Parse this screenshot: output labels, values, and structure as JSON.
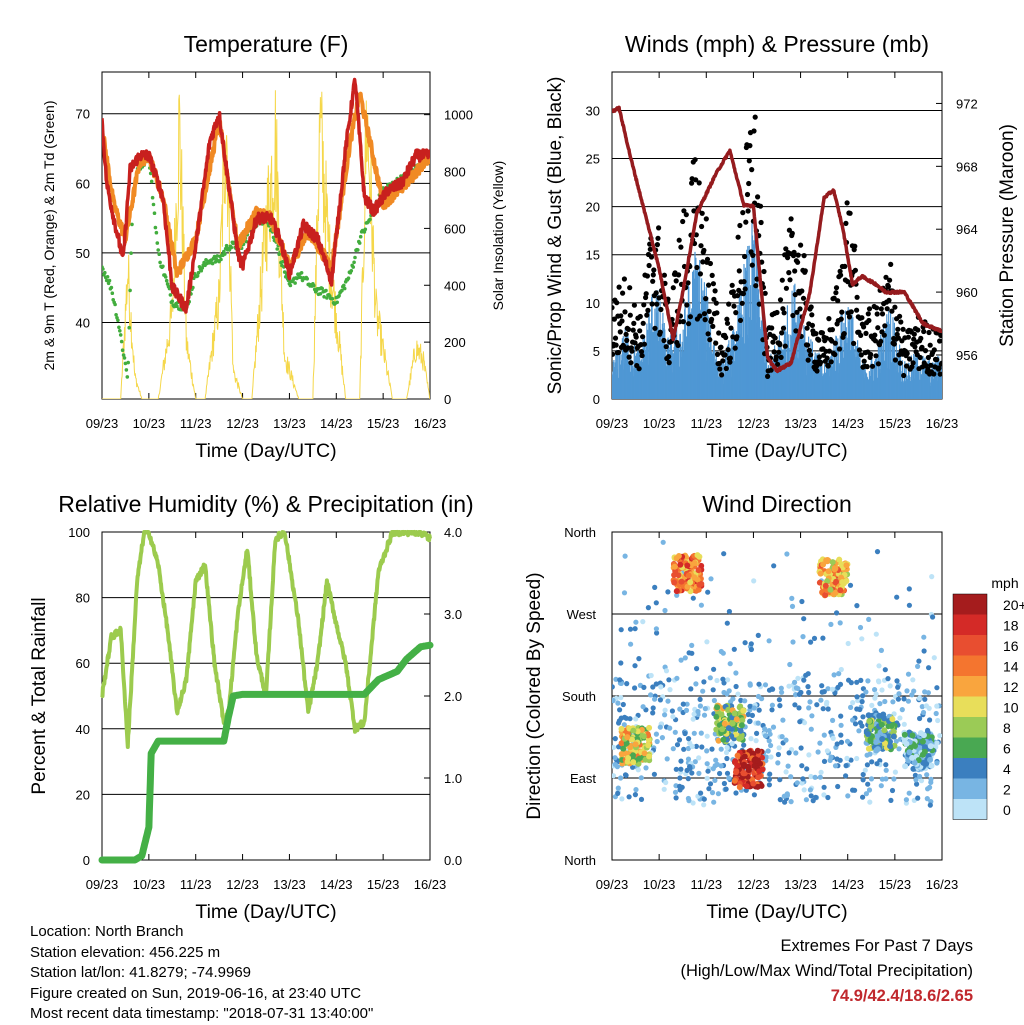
{
  "chart_data": [
    {
      "type": "line",
      "title": "Temperature (F)",
      "xlabel": "Time (Day/UTC)",
      "ylabel": "2m & 9m T (Red, Orange) & 2m Td (Green)",
      "ylabel_right": "Solar Insolation (Yellow)",
      "x_ticks": [
        "09/23",
        "10/23",
        "11/23",
        "12/23",
        "13/23",
        "14/23",
        "15/23",
        "16/23"
      ],
      "ylim": [
        29,
        76
      ],
      "y_ticks": [
        40,
        50,
        60,
        70
      ],
      "y2lim": [
        0,
        1150
      ],
      "y2_ticks": [
        0,
        200,
        400,
        600,
        800,
        1000
      ],
      "grid": true,
      "colors": {
        "t2m": "#c8201e",
        "t9m": "#f08a24",
        "td": "#42ad3d",
        "solar": "#f5d74a"
      },
      "series": [
        {
          "name": "2m T",
          "color": "#c8201e",
          "axis": "left",
          "x": [
            0,
            0.1,
            0.25,
            0.45,
            0.6,
            0.8,
            1.0,
            1.3,
            1.5,
            1.8,
            2.0,
            2.3,
            2.5,
            2.7,
            2.9,
            3.0,
            3.3,
            3.6,
            3.8,
            4.0,
            4.3,
            4.6,
            4.9,
            5.2,
            5.4,
            5.6,
            5.8,
            6.1,
            6.4,
            6.7,
            7.0
          ],
          "y": [
            69,
            60,
            55,
            49,
            62,
            64,
            64,
            58,
            45,
            42,
            51,
            66,
            70,
            60,
            50,
            48,
            55,
            55,
            52,
            47,
            54,
            52,
            46,
            65,
            75,
            58,
            56,
            59,
            60,
            64,
            64
          ]
        },
        {
          "name": "9m T",
          "color": "#f08a24",
          "axis": "left",
          "x": [
            0,
            0.25,
            0.5,
            0.8,
            1.0,
            1.3,
            1.6,
            2.0,
            2.5,
            2.9,
            3.3,
            3.6,
            4.0,
            4.4,
            4.9,
            5.3,
            5.5,
            6.0,
            6.5,
            7.0
          ],
          "y": [
            68,
            57,
            52,
            63,
            64,
            58,
            47,
            52,
            69,
            51,
            56,
            55,
            48,
            53,
            48,
            66,
            73,
            57,
            60,
            64
          ]
        },
        {
          "name": "2m Td",
          "color": "#42ad3d",
          "axis": "left",
          "x": [
            0,
            0.2,
            0.35,
            0.55,
            0.65,
            0.75,
            1.0,
            1.2,
            1.5,
            1.8,
            2.0,
            2.3,
            2.5,
            2.7,
            3.0,
            3.2,
            3.5,
            3.7,
            4.0,
            4.2,
            4.5,
            4.8,
            5.0,
            5.3,
            5.5,
            5.8,
            6.0,
            6.5,
            7.0
          ],
          "y": [
            48,
            45,
            40,
            32,
            57,
            62,
            64,
            50,
            43,
            42,
            47,
            49,
            49,
            51,
            51,
            54,
            55,
            52,
            45,
            47,
            45,
            44,
            43,
            47,
            52,
            56,
            59,
            61,
            64
          ]
        },
        {
          "name": "Solar Insolation",
          "color": "#f5d74a",
          "axis": "right",
          "x": [
            0,
            0.4,
            0.55,
            0.7,
            0.85,
            1.2,
            1.5,
            1.65,
            1.8,
            2.0,
            2.2,
            2.5,
            2.65,
            2.8,
            3.0,
            3.2,
            3.5,
            3.7,
            3.9,
            4.2,
            4.5,
            4.65,
            4.85,
            5.2,
            5.5,
            5.65,
            5.85,
            6.2,
            6.5,
            6.7,
            6.85,
            7.0
          ],
          "y": [
            0,
            0,
            450,
            80,
            0,
            0,
            300,
            950,
            200,
            0,
            0,
            350,
            1000,
            100,
            0,
            0,
            600,
            900,
            150,
            0,
            0,
            950,
            500,
            0,
            0,
            1000,
            300,
            0,
            0,
            180,
            140,
            0
          ]
        }
      ]
    },
    {
      "type": "scatter",
      "title": "Winds (mph) & Pressure (mb)",
      "xlabel": "Time (Day/UTC)",
      "ylabel": "Sonic/Prop Wind & Gust (Blue, Black)",
      "ylabel_right": "Station Pressure (Maroon)",
      "x_ticks": [
        "09/23",
        "10/23",
        "11/23",
        "12/23",
        "13/23",
        "14/23",
        "15/23",
        "16/23"
      ],
      "ylim": [
        0,
        34
      ],
      "y_ticks": [
        0,
        5,
        10,
        15,
        20,
        25,
        30
      ],
      "y2lim": [
        953.2,
        974.0
      ],
      "y2_ticks": [
        956,
        960,
        964,
        968,
        972
      ],
      "grid": true,
      "colors": {
        "wind": "#4f97d4",
        "gust": "#000000",
        "pressure": "#951b1e"
      },
      "series": [
        {
          "name": "Wind",
          "color": "#4f97d4",
          "axis": "left",
          "x": [
            0,
            0.3,
            0.6,
            0.9,
            1.2,
            1.5,
            1.8,
            2.0,
            2.3,
            2.6,
            2.8,
            3.0,
            3.3,
            3.6,
            3.9,
            4.2,
            4.5,
            4.8,
            5.0,
            5.3,
            5.6,
            5.9,
            6.2,
            6.5,
            6.8,
            7.0
          ],
          "y": [
            3,
            6,
            4,
            10,
            5,
            7,
            13,
            9,
            3,
            6,
            11,
            15,
            3,
            6,
            10,
            5,
            3,
            6,
            9,
            3,
            4,
            8,
            3,
            4,
            3,
            4
          ]
        },
        {
          "name": "Gust",
          "color": "#000000",
          "axis": "left",
          "x": [
            0,
            0.3,
            0.6,
            0.9,
            1.2,
            1.5,
            1.8,
            2.0,
            2.3,
            2.6,
            2.8,
            3.0,
            3.3,
            3.6,
            3.9,
            4.2,
            4.5,
            4.8,
            5.0,
            5.3,
            5.6,
            5.9,
            6.2,
            6.5,
            6.8,
            7.0
          ],
          "y": [
            10,
            12,
            8,
            20,
            9,
            18,
            24,
            18,
            6,
            12,
            22,
            31,
            6,
            12,
            20,
            9,
            6,
            12,
            21,
            8,
            9,
            14,
            6,
            8,
            7,
            6
          ]
        },
        {
          "name": "Station Pressure",
          "color": "#951b1e",
          "axis": "right",
          "x": [
            0,
            0.15,
            0.4,
            0.7,
            1.0,
            1.3,
            1.5,
            1.8,
            2.2,
            2.5,
            2.8,
            3.0,
            3.3,
            3.5,
            3.8,
            4.2,
            4.5,
            4.7,
            4.9,
            5.1,
            5.3,
            5.6,
            5.8,
            6.2,
            6.6,
            7.0
          ],
          "y": [
            971.5,
            971.7,
            968.5,
            965.0,
            961.5,
            957.0,
            960.0,
            965.0,
            967.5,
            969.0,
            965.5,
            965.5,
            955.8,
            955.0,
            955.5,
            960.0,
            966.0,
            966.5,
            964.0,
            960.5,
            961.0,
            960.5,
            960.0,
            960.0,
            958.0,
            957.5
          ]
        }
      ]
    },
    {
      "type": "line",
      "title": "Relative Humidity (%) & Precipitation (in)",
      "xlabel": "Time (Day/UTC)",
      "ylabel": "Percent & Total Rainfall",
      "x_ticks": [
        "09/23",
        "10/23",
        "11/23",
        "12/23",
        "13/23",
        "14/23",
        "15/23",
        "16/23"
      ],
      "ylim": [
        0,
        100
      ],
      "y_ticks": [
        0,
        20,
        40,
        60,
        80,
        100
      ],
      "y2lim": [
        0,
        4.0
      ],
      "y2_ticks": [
        "0.0",
        "1.0",
        "2.0",
        "3.0",
        "4.0"
      ],
      "grid": true,
      "colors": {
        "rh": "#9ccb4e",
        "precip": "#44b046"
      },
      "series": [
        {
          "name": "Relative Humidity",
          "color": "#9ccb4e",
          "axis": "left",
          "x": [
            0,
            0.2,
            0.4,
            0.55,
            0.65,
            0.75,
            0.9,
            1.0,
            1.2,
            1.4,
            1.6,
            1.8,
            2.0,
            2.2,
            2.4,
            2.6,
            2.7,
            2.9,
            3.1,
            3.3,
            3.5,
            3.7,
            3.9,
            4.2,
            4.4,
            4.6,
            4.8,
            5.0,
            5.2,
            5.4,
            5.6,
            5.9,
            6.2,
            6.5,
            6.8,
            7.0
          ],
          "y": [
            50,
            68,
            70,
            35,
            60,
            85,
            100,
            100,
            90,
            70,
            45,
            55,
            85,
            90,
            60,
            42,
            45,
            75,
            95,
            62,
            50,
            98,
            100,
            72,
            45,
            60,
            85,
            72,
            60,
            40,
            42,
            88,
            100,
            100,
            100,
            98
          ]
        },
        {
          "name": "Total Rainfall",
          "color": "#44b046",
          "axis": "right",
          "x": [
            0,
            0.7,
            0.85,
            1.0,
            1.05,
            1.2,
            2.0,
            2.6,
            2.7,
            2.8,
            3.0,
            4.0,
            5.0,
            5.6,
            5.9,
            6.3,
            6.5,
            6.8,
            7.0
          ],
          "y": [
            0.0,
            0.0,
            0.05,
            0.4,
            1.3,
            1.45,
            1.45,
            1.45,
            1.75,
            2.0,
            2.02,
            2.02,
            2.02,
            2.02,
            2.2,
            2.3,
            2.45,
            2.6,
            2.62
          ]
        }
      ]
    },
    {
      "type": "scatter",
      "title": "Wind Direction",
      "xlabel": "Time (Day/UTC)",
      "ylabel": "Direction (Colored By Speed)",
      "x_ticks": [
        "09/23",
        "10/23",
        "11/23",
        "12/23",
        "13/23",
        "14/23",
        "15/23",
        "16/23"
      ],
      "y_ticks": [
        "North",
        "East",
        "South",
        "West",
        "North"
      ],
      "ylim": [
        0,
        360
      ],
      "grid": true,
      "colorbar": {
        "units": "mph",
        "labels": [
          "20+",
          "18",
          "16",
          "14",
          "12",
          "10",
          "8",
          "6",
          "4",
          "2",
          "0"
        ],
        "colors": [
          "#a51c1d",
          "#d42a27",
          "#e84e30",
          "#f4752f",
          "#f9a53e",
          "#e8de5a",
          "#9bcb56",
          "#49a852",
          "#3b7fbf",
          "#78b5e3",
          "#bde3f7"
        ]
      },
      "clusters": [
        {
          "x": 0.5,
          "dir": 125,
          "speed": 10
        },
        {
          "x": 1.6,
          "dir": 315,
          "speed": 14
        },
        {
          "x": 2.9,
          "dir": 100,
          "speed": 18
        },
        {
          "x": 2.5,
          "dir": 150,
          "speed": 8
        },
        {
          "x": 4.7,
          "dir": 310,
          "speed": 12
        },
        {
          "x": 5.7,
          "dir": 140,
          "speed": 6
        },
        {
          "x": 6.5,
          "dir": 120,
          "speed": 3
        }
      ]
    }
  ],
  "footer": {
    "location": "Location: North Branch",
    "elevation": "Station elevation: 456.225 m",
    "latlon": "Station lat/lon: 41.8279; -74.9969",
    "created": "Figure created on Sun, 2019-06-16, at 23:40 UTC",
    "recent": "Most recent data timestamp: \"2018-07-31 13:40:00\""
  },
  "extremes": {
    "title": "Extremes For Past 7 Days",
    "subtitle": "(High/Low/Max Wind/Total Precipitation)",
    "value": "74.9/42.4/18.6/2.65"
  }
}
